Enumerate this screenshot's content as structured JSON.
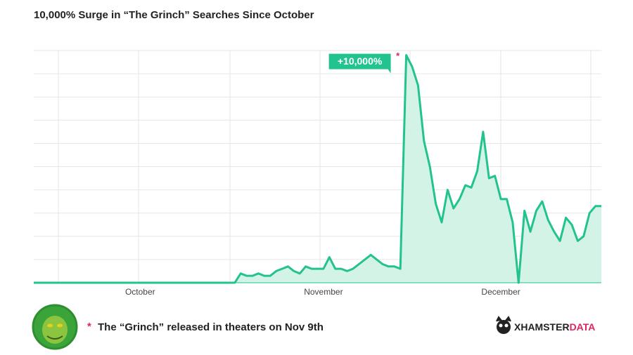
{
  "chart_data": {
    "type": "area",
    "title": "10,000% Surge in “The Grinch” Searches Since October",
    "annotation": "+10,000%",
    "annotation_marker": "*",
    "footnote": "The “Grinch” released in theaters on Nov 9th",
    "footnote_marker": "*",
    "brand": "XHAMSTER",
    "brand_suffix": "DATA",
    "color": "#22c38e",
    "fill": "#d3f3e6",
    "grid": true,
    "ylim": [
      0,
      100
    ],
    "yticks": [
      0,
      10,
      20,
      30,
      40,
      50,
      60,
      70,
      80,
      90,
      100
    ],
    "categories": [
      null,
      null,
      null,
      null,
      null,
      null,
      null,
      null,
      null,
      null,
      null,
      null,
      null,
      null,
      null,
      null,
      null,
      null,
      "October",
      null,
      null,
      null,
      null,
      null,
      null,
      null,
      null,
      null,
      null,
      null,
      null,
      null,
      null,
      null,
      null,
      null,
      null,
      null,
      null,
      null,
      null,
      null,
      null,
      null,
      null,
      null,
      null,
      null,
      null,
      "November",
      null,
      null,
      null,
      null,
      null,
      null,
      null,
      null,
      null,
      null,
      null,
      null,
      null,
      null,
      null,
      null,
      null,
      null,
      null,
      null,
      null,
      null,
      null,
      null,
      null,
      null,
      null,
      null,
      null,
      "December",
      null,
      null,
      null,
      null,
      null,
      null,
      null,
      null,
      null,
      null,
      null,
      null,
      null,
      null,
      null,
      null,
      null
    ],
    "values": [
      0,
      0,
      0,
      0,
      0,
      0,
      0,
      0,
      0,
      0,
      0,
      0,
      0,
      0,
      0,
      0,
      0,
      0,
      0,
      0,
      0,
      0,
      0,
      0,
      0,
      0,
      0,
      0,
      0,
      0,
      0,
      0,
      0,
      0,
      0,
      4,
      3,
      3,
      4,
      3,
      3,
      5,
      6,
      7,
      5,
      4,
      7,
      6,
      6,
      6,
      11,
      6,
      6,
      5,
      6,
      8,
      10,
      12,
      10,
      8,
      7,
      7,
      6,
      98,
      93,
      85,
      61,
      50,
      34,
      26,
      40,
      32,
      36,
      42,
      41,
      48,
      65,
      45,
      46,
      36,
      36,
      26,
      0,
      31,
      22,
      31,
      35,
      27,
      22,
      18,
      28,
      25,
      18,
      20,
      30,
      33,
      33
    ],
    "peak_index": 63
  }
}
